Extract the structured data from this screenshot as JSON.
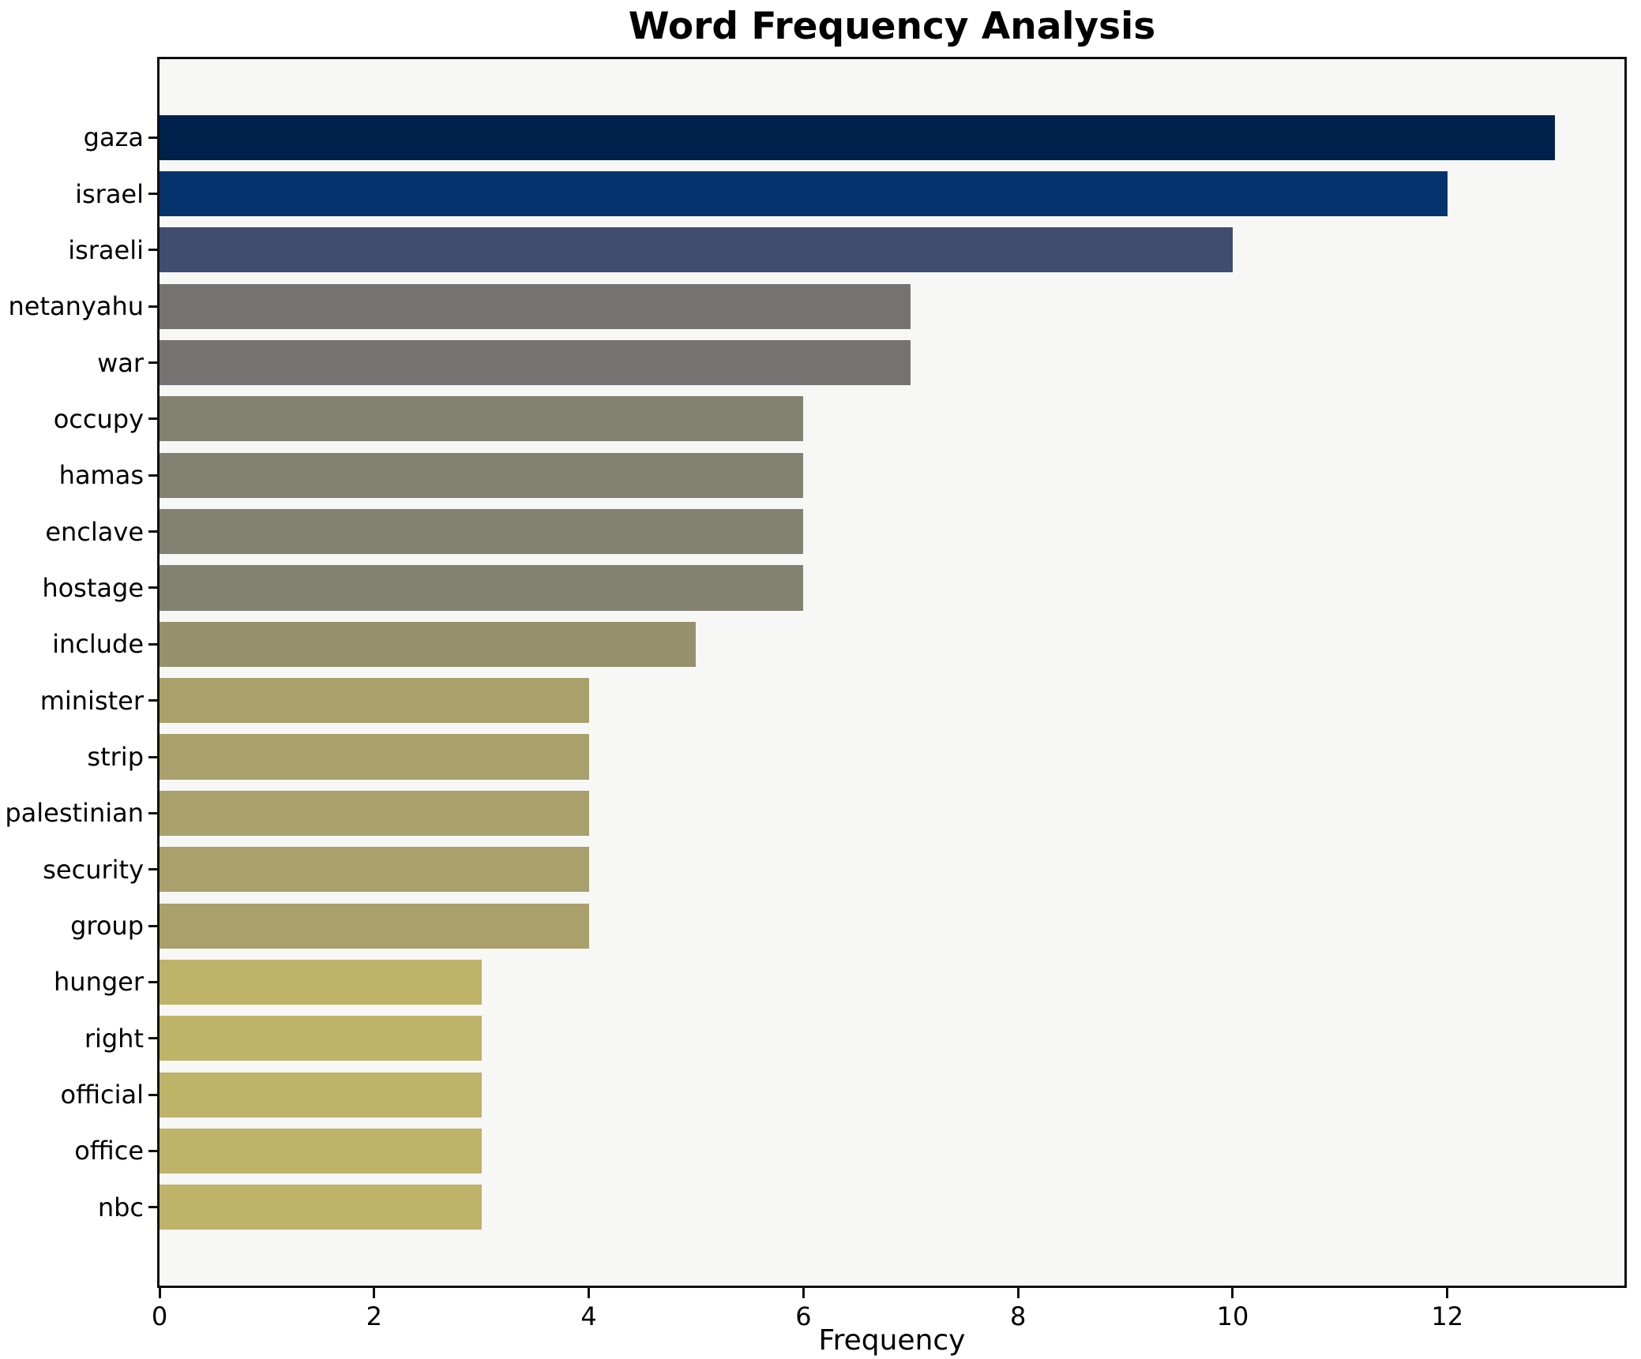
{
  "title": "Word Frequency Analysis",
  "chart_data": {
    "type": "bar",
    "orientation": "horizontal",
    "title": "Word Frequency Analysis",
    "xlabel": "Frequency",
    "ylabel": "",
    "categories": [
      "gaza",
      "israel",
      "israeli",
      "netanyahu",
      "war",
      "occupy",
      "hamas",
      "enclave",
      "hostage",
      "include",
      "minister",
      "strip",
      "palestinian",
      "security",
      "group",
      "hunger",
      "right",
      "official",
      "office",
      "nbc"
    ],
    "values": [
      13,
      12,
      10,
      7,
      7,
      6,
      6,
      6,
      6,
      5,
      4,
      4,
      4,
      4,
      4,
      3,
      3,
      3,
      3,
      3
    ],
    "bar_colors": [
      "#00214b",
      "#05336d",
      "#3f4d6e",
      "#747372",
      "#747372",
      "#838170",
      "#838170",
      "#838170",
      "#838170",
      "#97906c",
      "#a9a06b",
      "#a9a06b",
      "#a9a06b",
      "#a9a06b",
      "#a9a06b",
      "#bfb269",
      "#bfb269",
      "#bfb269",
      "#bfb269",
      "#bfb269"
    ],
    "xticks": [
      0,
      2,
      4,
      6,
      8,
      10,
      12
    ],
    "xlim": [
      0,
      13.65
    ],
    "bar_height_fraction": 0.8,
    "grid": false,
    "legend": null,
    "colors": {
      "figure_bg": "#ffffff",
      "plot_bg": "#f7f7f6",
      "spine": "#0f0f0f",
      "text": "#000000"
    }
  }
}
